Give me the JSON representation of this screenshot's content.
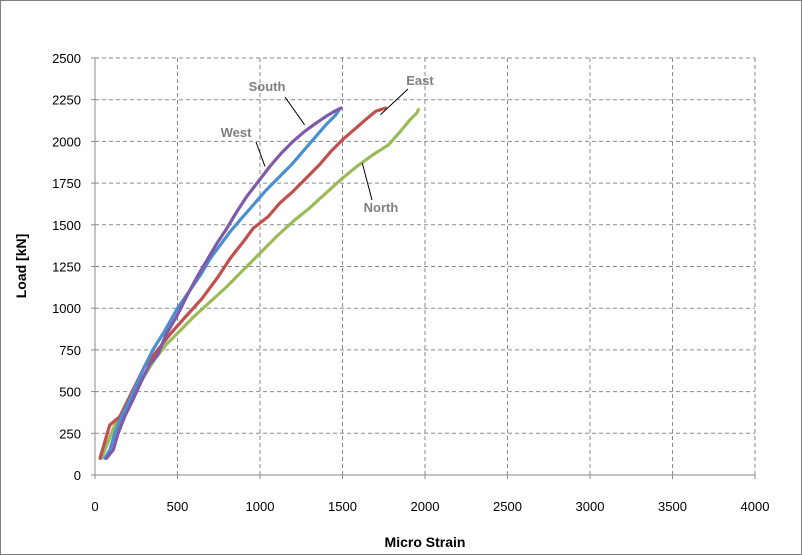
{
  "chart_data": {
    "type": "line",
    "title": "",
    "xlabel": "Micro Strain",
    "ylabel": "Load [kN]",
    "xlim": [
      0,
      4000
    ],
    "ylim": [
      0,
      2500
    ],
    "x_ticks": [
      "0",
      "500",
      "1000",
      "1500",
      "2000",
      "2500",
      "3000",
      "3500",
      "4000"
    ],
    "y_ticks": [
      "0",
      "250",
      "500",
      "750",
      "1000",
      "1250",
      "1500",
      "1750",
      "2000",
      "2250",
      "2500"
    ],
    "grid": "dashed major gridlines",
    "legend": "none (series labelled directly with leader lines)",
    "series": [
      {
        "name": "South",
        "color": "#7f5aa8",
        "points": [
          [
            70,
            100
          ],
          [
            110,
            150
          ],
          [
            140,
            250
          ],
          [
            180,
            350
          ],
          [
            230,
            450
          ],
          [
            280,
            560
          ],
          [
            330,
            660
          ],
          [
            380,
            720
          ],
          [
            430,
            840
          ],
          [
            500,
            960
          ],
          [
            560,
            1080
          ],
          [
            620,
            1190
          ],
          [
            680,
            1290
          ],
          [
            740,
            1390
          ],
          [
            800,
            1480
          ],
          [
            860,
            1580
          ],
          [
            920,
            1670
          ],
          [
            990,
            1760
          ],
          [
            1060,
            1850
          ],
          [
            1130,
            1930
          ],
          [
            1200,
            2000
          ],
          [
            1270,
            2060
          ],
          [
            1340,
            2110
          ],
          [
            1400,
            2150
          ],
          [
            1450,
            2180
          ],
          [
            1490,
            2200
          ]
        ]
      },
      {
        "name": "West",
        "color": "#4a8fd0",
        "points": [
          [
            60,
            100
          ],
          [
            90,
            150
          ],
          [
            120,
            250
          ],
          [
            160,
            350
          ],
          [
            210,
            450
          ],
          [
            260,
            560
          ],
          [
            300,
            650
          ],
          [
            350,
            750
          ],
          [
            420,
            860
          ],
          [
            500,
            1000
          ],
          [
            570,
            1100
          ],
          [
            640,
            1200
          ],
          [
            700,
            1300
          ],
          [
            760,
            1380
          ],
          [
            820,
            1460
          ],
          [
            890,
            1540
          ],
          [
            960,
            1620
          ],
          [
            1030,
            1700
          ],
          [
            1110,
            1780
          ],
          [
            1190,
            1860
          ],
          [
            1260,
            1940
          ],
          [
            1330,
            2020
          ],
          [
            1400,
            2100
          ],
          [
            1460,
            2160
          ],
          [
            1480,
            2190
          ]
        ]
      },
      {
        "name": "East",
        "color": "#c0504d",
        "points": [
          [
            30,
            100
          ],
          [
            60,
            200
          ],
          [
            90,
            300
          ],
          [
            150,
            350
          ],
          [
            200,
            450
          ],
          [
            250,
            550
          ],
          [
            300,
            650
          ],
          [
            380,
            750
          ],
          [
            460,
            850
          ],
          [
            550,
            950
          ],
          [
            650,
            1060
          ],
          [
            740,
            1180
          ],
          [
            820,
            1300
          ],
          [
            900,
            1400
          ],
          [
            960,
            1480
          ],
          [
            1050,
            1550
          ],
          [
            1120,
            1630
          ],
          [
            1200,
            1700
          ],
          [
            1280,
            1780
          ],
          [
            1360,
            1860
          ],
          [
            1430,
            1940
          ],
          [
            1500,
            2010
          ],
          [
            1570,
            2070
          ],
          [
            1640,
            2130
          ],
          [
            1700,
            2180
          ],
          [
            1760,
            2200
          ]
        ]
      },
      {
        "name": "North",
        "color": "#9bbb59",
        "points": [
          [
            40,
            100
          ],
          [
            80,
            200
          ],
          [
            120,
            300
          ],
          [
            170,
            380
          ],
          [
            230,
            480
          ],
          [
            290,
            580
          ],
          [
            360,
            690
          ],
          [
            430,
            780
          ],
          [
            510,
            860
          ],
          [
            600,
            950
          ],
          [
            700,
            1040
          ],
          [
            800,
            1130
          ],
          [
            900,
            1230
          ],
          [
            1000,
            1330
          ],
          [
            1100,
            1430
          ],
          [
            1200,
            1520
          ],
          [
            1300,
            1600
          ],
          [
            1400,
            1690
          ],
          [
            1500,
            1780
          ],
          [
            1600,
            1860
          ],
          [
            1700,
            1930
          ],
          [
            1780,
            1980
          ],
          [
            1850,
            2060
          ],
          [
            1910,
            2130
          ],
          [
            1950,
            2170
          ],
          [
            1960,
            2190
          ]
        ]
      }
    ],
    "annotations": [
      {
        "text": "South",
        "series": "South"
      },
      {
        "text": "West",
        "series": "West"
      },
      {
        "text": "East",
        "series": "East"
      },
      {
        "text": "North",
        "series": "North"
      }
    ]
  }
}
